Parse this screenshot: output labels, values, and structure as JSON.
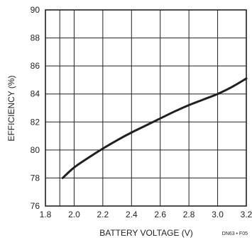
{
  "chart_data": {
    "type": "line",
    "title": "",
    "xlabel": "BATTERY VOLTAGE (V)",
    "ylabel": "EFFICIENCY (%)",
    "xlim": [
      1.8,
      3.2
    ],
    "ylim": [
      76,
      90
    ],
    "grid": true,
    "x_ticks": [
      "1.8",
      "2.0",
      "2.2",
      "2.4",
      "2.6",
      "2.8",
      "3.0",
      "3.2"
    ],
    "y_ticks": [
      "76",
      "78",
      "80",
      "82",
      "84",
      "86",
      "88",
      "90"
    ],
    "series": [
      {
        "x": [
          1.92,
          2.0,
          2.1,
          2.2,
          2.3,
          2.4,
          2.5,
          2.6,
          2.7,
          2.8,
          2.9,
          3.0,
          3.1,
          3.2
        ],
        "y": [
          78.0,
          78.75,
          79.45,
          80.1,
          80.7,
          81.25,
          81.75,
          82.25,
          82.75,
          83.2,
          83.6,
          84.0,
          84.5,
          85.1
        ]
      }
    ],
    "line_color": "#231f20"
  },
  "figure_tag": "DN63 • F05"
}
